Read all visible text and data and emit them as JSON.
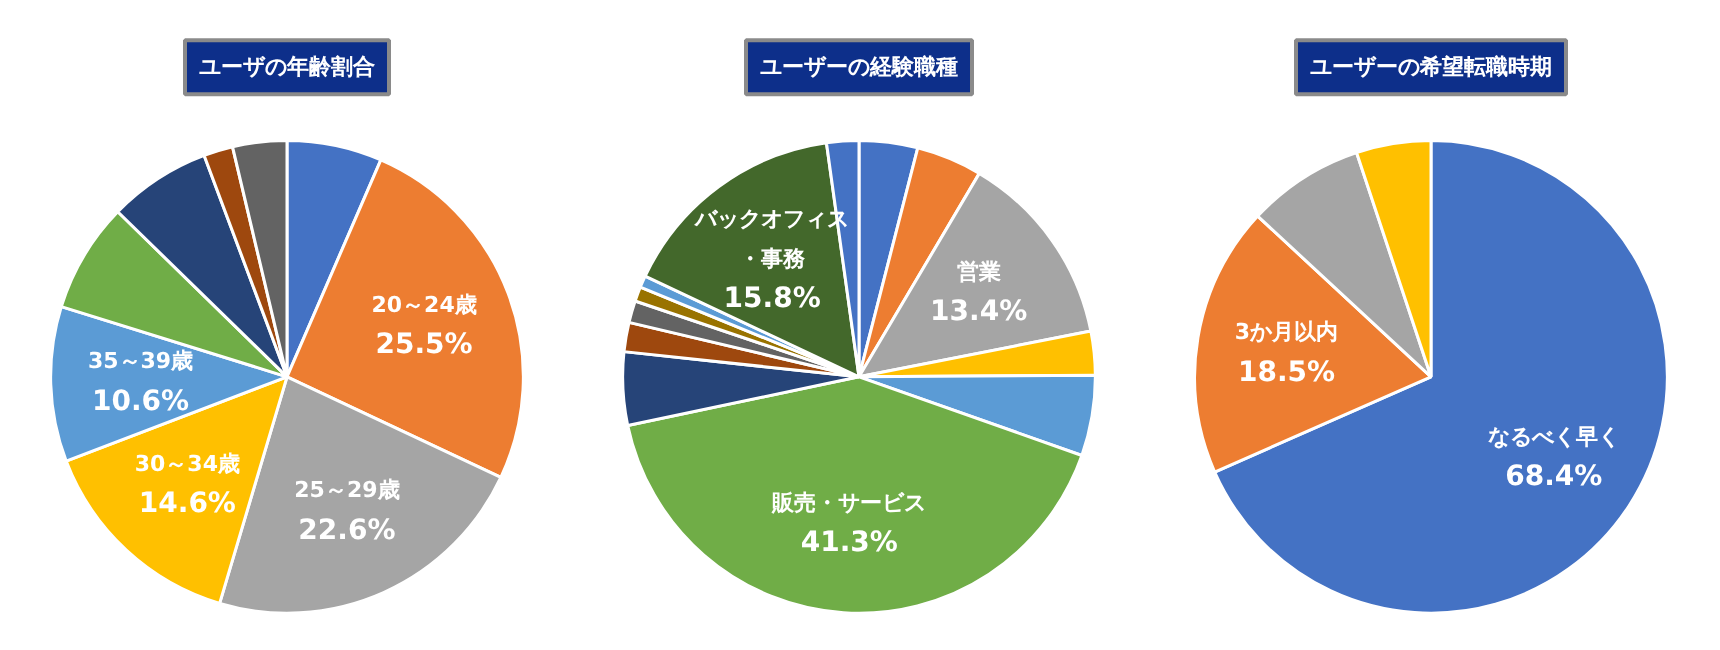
{
  "chart_data": [
    {
      "type": "pie",
      "title": "ユーザの年齢割合",
      "categories": [
        null,
        "20～24歳",
        "25～29歳",
        "30～34歳",
        "35～39歳",
        null,
        null,
        null,
        null
      ],
      "values": [
        6.5,
        25.5,
        22.6,
        14.6,
        10.6,
        7.5,
        7.0,
        2.0,
        3.7
      ],
      "value_labels": [
        null,
        "25.5%",
        "22.6%",
        "14.6%",
        "10.6%",
        null,
        null,
        null,
        null
      ],
      "colors": [
        "#4472c4",
        "#ed7d31",
        "#a5a5a5",
        "#ffc000",
        "#5b9bd5",
        "#70ad47",
        "#264478",
        "#9e480e",
        "#636363"
      ]
    },
    {
      "type": "pie",
      "title": "ユーザーの経験職種",
      "categories": [
        null,
        null,
        "営業",
        null,
        null,
        "販売・サービス",
        null,
        null,
        null,
        null,
        null,
        "バックオフィス・事務",
        null
      ],
      "values": [
        4.0,
        4.5,
        13.4,
        3.0,
        5.5,
        41.3,
        5.0,
        2.0,
        1.5,
        1.0,
        0.8,
        15.8,
        2.2
      ],
      "value_labels": [
        null,
        null,
        "13.4%",
        null,
        null,
        "41.3%",
        null,
        null,
        null,
        null,
        null,
        "15.8%",
        null
      ],
      "colors": [
        "#4472c4",
        "#ed7d31",
        "#a5a5a5",
        "#ffc000",
        "#5b9bd5",
        "#70ad47",
        "#264478",
        "#9e480e",
        "#636363",
        "#997300",
        "#5b9bd5",
        "#43682b",
        "#4472c4"
      ]
    },
    {
      "type": "pie",
      "title": "ユーザーの希望転職時期",
      "categories": [
        "なるべく早く",
        "3か月以内",
        null,
        null
      ],
      "values": [
        68.4,
        18.5,
        8.0,
        5.1
      ],
      "value_labels": [
        "68.4%",
        "18.5%",
        null,
        null
      ],
      "colors": [
        "#4472c4",
        "#ed7d31",
        "#a5a5a5",
        "#ffc000"
      ]
    }
  ]
}
